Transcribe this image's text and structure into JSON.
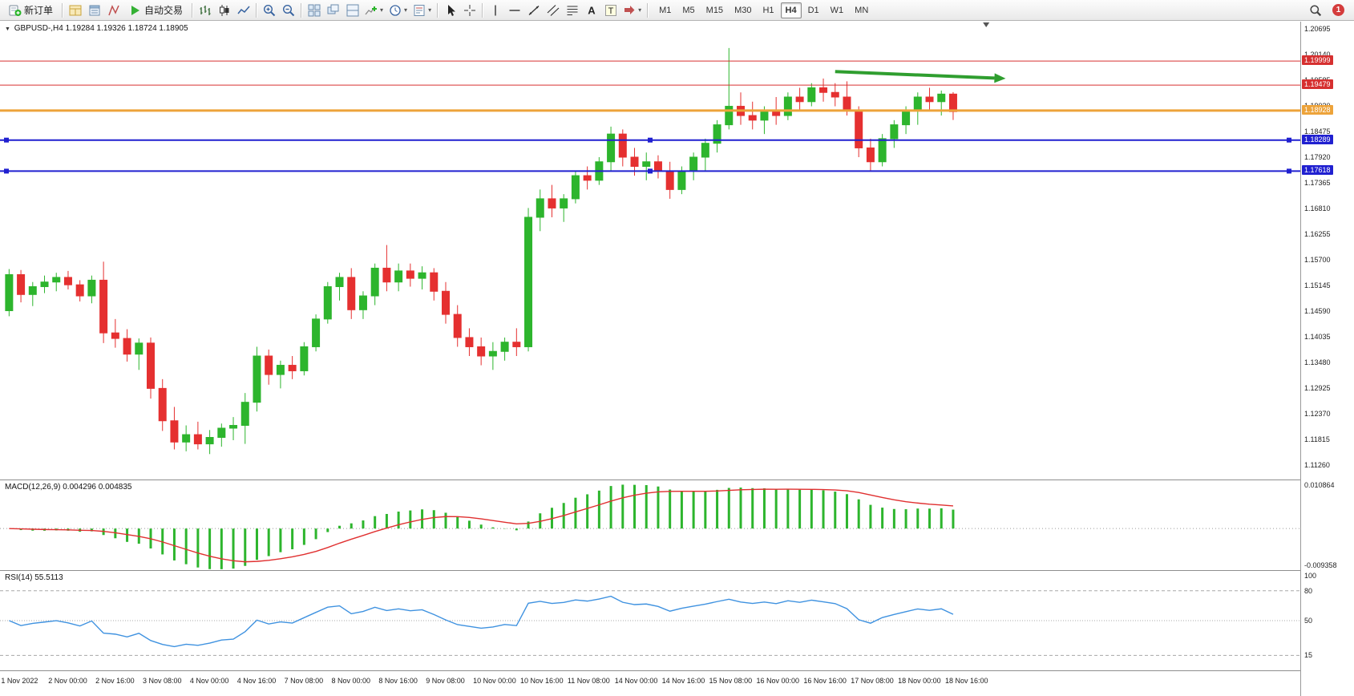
{
  "app": {
    "badge_count": "1"
  },
  "toolbar": {
    "items": [
      {
        "name": "new-order-button",
        "icon": "newordr",
        "label": "新订单"
      },
      {
        "name": "separator"
      },
      {
        "name": "market-watch-button",
        "icon": "mwatch"
      },
      {
        "name": "data-window-button",
        "icon": "dwin"
      },
      {
        "name": "navigator-button",
        "icon": "nav"
      },
      {
        "name": "autotrading-button",
        "icon": "play",
        "label": "自动交易"
      },
      {
        "name": "separator"
      },
      {
        "name": "bar-chart-button",
        "icon": "bars"
      },
      {
        "name": "candlestick-chart-button",
        "icon": "candle"
      },
      {
        "name": "line-chart-button",
        "icon": "linec"
      },
      {
        "name": "separator"
      },
      {
        "name": "zoom-in-button",
        "icon": "zoomin"
      },
      {
        "name": "zoom-out-button",
        "icon": "zoomout"
      },
      {
        "name": "separator"
      },
      {
        "name": "tile-windows-button",
        "icon": "tile"
      },
      {
        "name": "cascade-windows-button",
        "icon": "cascade"
      },
      {
        "name": "arrange-windows-button",
        "icon": "arrange"
      },
      {
        "name": "indicators-button",
        "icon": "indic",
        "caret": true
      },
      {
        "name": "periods-button",
        "icon": "clock",
        "caret": true
      },
      {
        "name": "templates-button",
        "icon": "template",
        "caret": true
      },
      {
        "name": "separator"
      },
      {
        "name": "cursor-button",
        "icon": "cursor"
      },
      {
        "name": "crosshair-button",
        "icon": "cross"
      },
      {
        "name": "separator"
      },
      {
        "name": "vertical-line-button",
        "icon": "vline"
      },
      {
        "name": "horizontal-line-button",
        "icon": "hline"
      },
      {
        "name": "trendline-button",
        "icon": "tline"
      },
      {
        "name": "channel-button",
        "icon": "channel"
      },
      {
        "name": "fibonacci-button",
        "icon": "fibo"
      },
      {
        "name": "text-button",
        "icon": "textA"
      },
      {
        "name": "label-button",
        "icon": "textT"
      },
      {
        "name": "arrows-button",
        "icon": "shapes",
        "caret": true
      },
      {
        "name": "separator"
      }
    ],
    "timeframes": [
      "M1",
      "M5",
      "M15",
      "M30",
      "H1",
      "H4",
      "D1",
      "W1",
      "MN"
    ],
    "active_timeframe": "H4"
  },
  "panes": {
    "main_caret": "▼",
    "main_symbol": "GBPUSD-,H4",
    "main_ohlc": "1.19284 1.19326 1.18724 1.18905",
    "macd_name": "MACD(12,26,9)",
    "macd_values": "0.004296 0.004835",
    "rsi_name": "RSI(14)",
    "rsi_value": "55.5113"
  },
  "colors": {
    "up": "#2db52d",
    "down": "#e53030",
    "macd_hist": "#2db52d",
    "macd_signal": "#e03030",
    "rsi_line": "#3f92e0",
    "arrow": "#2f9e2f"
  },
  "chart_data": {
    "type": "candlestick",
    "symbol": "GBPUSD-",
    "timeframe": "H4",
    "current_bar": {
      "open": 1.19284,
      "high": 1.19326,
      "low": 1.18724,
      "close": 1.18905
    },
    "ylim": [
      1.1095,
      1.2085
    ],
    "price_axis_labels": [
      "1.20695",
      "1.20140",
      "1.19585",
      "1.19030",
      "1.18475",
      "1.17920",
      "1.17365",
      "1.16810",
      "1.16255",
      "1.15700",
      "1.15145",
      "1.14590",
      "1.14035",
      "1.13480",
      "1.12925",
      "1.12370",
      "1.11815",
      "1.11260"
    ],
    "time_labels": [
      "1 Nov 2022",
      "2 Nov 00:00",
      "2 Nov 16:00",
      "3 Nov 08:00",
      "4 Nov 00:00",
      "4 Nov 16:00",
      "7 Nov 08:00",
      "8 Nov 00:00",
      "8 Nov 16:00",
      "9 Nov 08:00",
      "10 Nov 00:00",
      "10 Nov 16:00",
      "11 Nov 08:00",
      "14 Nov 00:00",
      "14 Nov 16:00",
      "15 Nov 08:00",
      "16 Nov 00:00",
      "16 Nov 16:00",
      "17 Nov 08:00",
      "18 Nov 00:00",
      "18 Nov 16:00"
    ],
    "label_every_n_candles": 4,
    "candles": [
      [
        1.146,
        1.155,
        1.1448,
        1.1538
      ],
      [
        1.1538,
        1.1548,
        1.1478,
        1.1495
      ],
      [
        1.1495,
        1.1522,
        1.147,
        1.1512
      ],
      [
        1.1512,
        1.1536,
        1.1498,
        1.1522
      ],
      [
        1.1522,
        1.1542,
        1.1502,
        1.1532
      ],
      [
        1.1532,
        1.1546,
        1.1506,
        1.1516
      ],
      [
        1.1516,
        1.1526,
        1.148,
        1.1492
      ],
      [
        1.1492,
        1.1536,
        1.1476,
        1.1526
      ],
      [
        1.1526,
        1.1566,
        1.139,
        1.1412
      ],
      [
        1.1412,
        1.1442,
        1.138,
        1.14
      ],
      [
        1.14,
        1.142,
        1.135,
        1.1366
      ],
      [
        1.1366,
        1.14,
        1.1332,
        1.139
      ],
      [
        1.139,
        1.1402,
        1.127,
        1.1292
      ],
      [
        1.1292,
        1.1312,
        1.12,
        1.1222
      ],
      [
        1.1222,
        1.1252,
        1.116,
        1.1176
      ],
      [
        1.1176,
        1.1212,
        1.1156,
        1.1192
      ],
      [
        1.1192,
        1.122,
        1.116,
        1.1172
      ],
      [
        1.1172,
        1.1202,
        1.115,
        1.1186
      ],
      [
        1.1186,
        1.1216,
        1.1166,
        1.1206
      ],
      [
        1.1206,
        1.123,
        1.118,
        1.1212
      ],
      [
        1.1212,
        1.1282,
        1.1172,
        1.1262
      ],
      [
        1.1262,
        1.1382,
        1.1242,
        1.1362
      ],
      [
        1.1362,
        1.1376,
        1.13,
        1.1322
      ],
      [
        1.1322,
        1.1352,
        1.1292,
        1.1342
      ],
      [
        1.1342,
        1.1362,
        1.1312,
        1.133
      ],
      [
        1.133,
        1.1392,
        1.132,
        1.1382
      ],
      [
        1.1382,
        1.1452,
        1.1372,
        1.1442
      ],
      [
        1.1442,
        1.1522,
        1.1432,
        1.1512
      ],
      [
        1.1512,
        1.1542,
        1.1482,
        1.1532
      ],
      [
        1.1532,
        1.1552,
        1.1442,
        1.1462
      ],
      [
        1.1462,
        1.1502,
        1.1442,
        1.1492
      ],
      [
        1.1492,
        1.1562,
        1.1472,
        1.1552
      ],
      [
        1.1552,
        1.1602,
        1.1502,
        1.1522
      ],
      [
        1.1522,
        1.1562,
        1.1502,
        1.1546
      ],
      [
        1.1546,
        1.1562,
        1.1512,
        1.153
      ],
      [
        1.153,
        1.1556,
        1.1506,
        1.1542
      ],
      [
        1.1542,
        1.1552,
        1.1482,
        1.1502
      ],
      [
        1.1502,
        1.1522,
        1.1432,
        1.1452
      ],
      [
        1.1452,
        1.1472,
        1.1382,
        1.1402
      ],
      [
        1.1402,
        1.1422,
        1.1362,
        1.1382
      ],
      [
        1.1382,
        1.1402,
        1.1342,
        1.1362
      ],
      [
        1.1362,
        1.1392,
        1.1332,
        1.1372
      ],
      [
        1.1372,
        1.1402,
        1.1352,
        1.1392
      ],
      [
        1.1392,
        1.1422,
        1.1362,
        1.1382
      ],
      [
        1.1382,
        1.1682,
        1.1372,
        1.1662
      ],
      [
        1.1662,
        1.1722,
        1.1632,
        1.1702
      ],
      [
        1.1702,
        1.1732,
        1.1662,
        1.1682
      ],
      [
        1.1682,
        1.1712,
        1.1652,
        1.1702
      ],
      [
        1.1702,
        1.1762,
        1.1692,
        1.1752
      ],
      [
        1.1752,
        1.1772,
        1.1722,
        1.1742
      ],
      [
        1.1742,
        1.1792,
        1.1732,
        1.1782
      ],
      [
        1.1782,
        1.1858,
        1.1762,
        1.1842
      ],
      [
        1.1842,
        1.1852,
        1.1772,
        1.1792
      ],
      [
        1.1792,
        1.1812,
        1.1752,
        1.1772
      ],
      [
        1.1772,
        1.1802,
        1.1742,
        1.1782
      ],
      [
        1.1782,
        1.1796,
        1.1746,
        1.1762
      ],
      [
        1.1762,
        1.1782,
        1.1702,
        1.1722
      ],
      [
        1.1722,
        1.1772,
        1.1712,
        1.1762
      ],
      [
        1.1762,
        1.1802,
        1.1742,
        1.1792
      ],
      [
        1.1792,
        1.1832,
        1.1762,
        1.1822
      ],
      [
        1.1822,
        1.1872,
        1.1802,
        1.1862
      ],
      [
        1.1862,
        1.2028,
        1.1852,
        1.1902
      ],
      [
        1.1902,
        1.1932,
        1.1862,
        1.1882
      ],
      [
        1.1882,
        1.1912,
        1.1852,
        1.1872
      ],
      [
        1.1872,
        1.1902,
        1.1842,
        1.1892
      ],
      [
        1.1892,
        1.1922,
        1.1862,
        1.1882
      ],
      [
        1.1882,
        1.1932,
        1.1872,
        1.1922
      ],
      [
        1.1922,
        1.1942,
        1.1892,
        1.1912
      ],
      [
        1.1912,
        1.1952,
        1.1902,
        1.1942
      ],
      [
        1.1942,
        1.1962,
        1.1912,
        1.1932
      ],
      [
        1.1932,
        1.1952,
        1.1902,
        1.1922
      ],
      [
        1.1922,
        1.1956,
        1.1882,
        1.1892
      ],
      [
        1.1892,
        1.1902,
        1.1792,
        1.1812
      ],
      [
        1.1812,
        1.1832,
        1.1762,
        1.1782
      ],
      [
        1.1782,
        1.1842,
        1.1772,
        1.1832
      ],
      [
        1.1832,
        1.1872,
        1.1812,
        1.1862
      ],
      [
        1.1862,
        1.1902,
        1.1842,
        1.1892
      ],
      [
        1.1892,
        1.1932,
        1.1862,
        1.1922
      ],
      [
        1.1922,
        1.1942,
        1.1892,
        1.1912
      ],
      [
        1.1912,
        1.1936,
        1.1882,
        1.19284
      ],
      [
        1.19284,
        1.19326,
        1.18724,
        1.18905
      ]
    ],
    "hlines": [
      {
        "price": 1.19999,
        "label": "1.19999",
        "color": "#d63030",
        "width": 1,
        "selected": false
      },
      {
        "price": 1.19479,
        "label": "1.19479",
        "color": "#d63030",
        "width": 1,
        "selected": false
      },
      {
        "price": 1.18928,
        "label": "1.18928",
        "color": "#eda33a",
        "width": 3,
        "selected": false
      },
      {
        "price": 1.18289,
        "label": "1.18289",
        "color": "#2020d0",
        "width": 2,
        "selected": true
      },
      {
        "price": 1.17618,
        "label": "1.17618",
        "color": "#2020d0",
        "width": 2,
        "selected": true
      }
    ],
    "trend_arrow": {
      "from_index": 70,
      "from_price": 1.1977,
      "to_index": 83.5,
      "to_price": 1.1963
    },
    "shift_marker_index": 82.8,
    "macd": {
      "params": "12,26,9",
      "main_value": 0.004296,
      "signal_value": 0.004835,
      "axis_max": 0.010864,
      "axis_min": -0.009358,
      "axis_max_label": "0.010864",
      "axis_min_label": "-0.009358"
    },
    "rsi": {
      "period": 14,
      "value": 55.5113,
      "levels": [
        80,
        50,
        15
      ],
      "axis_labels": [
        "100",
        "80",
        "50",
        "15"
      ]
    }
  }
}
